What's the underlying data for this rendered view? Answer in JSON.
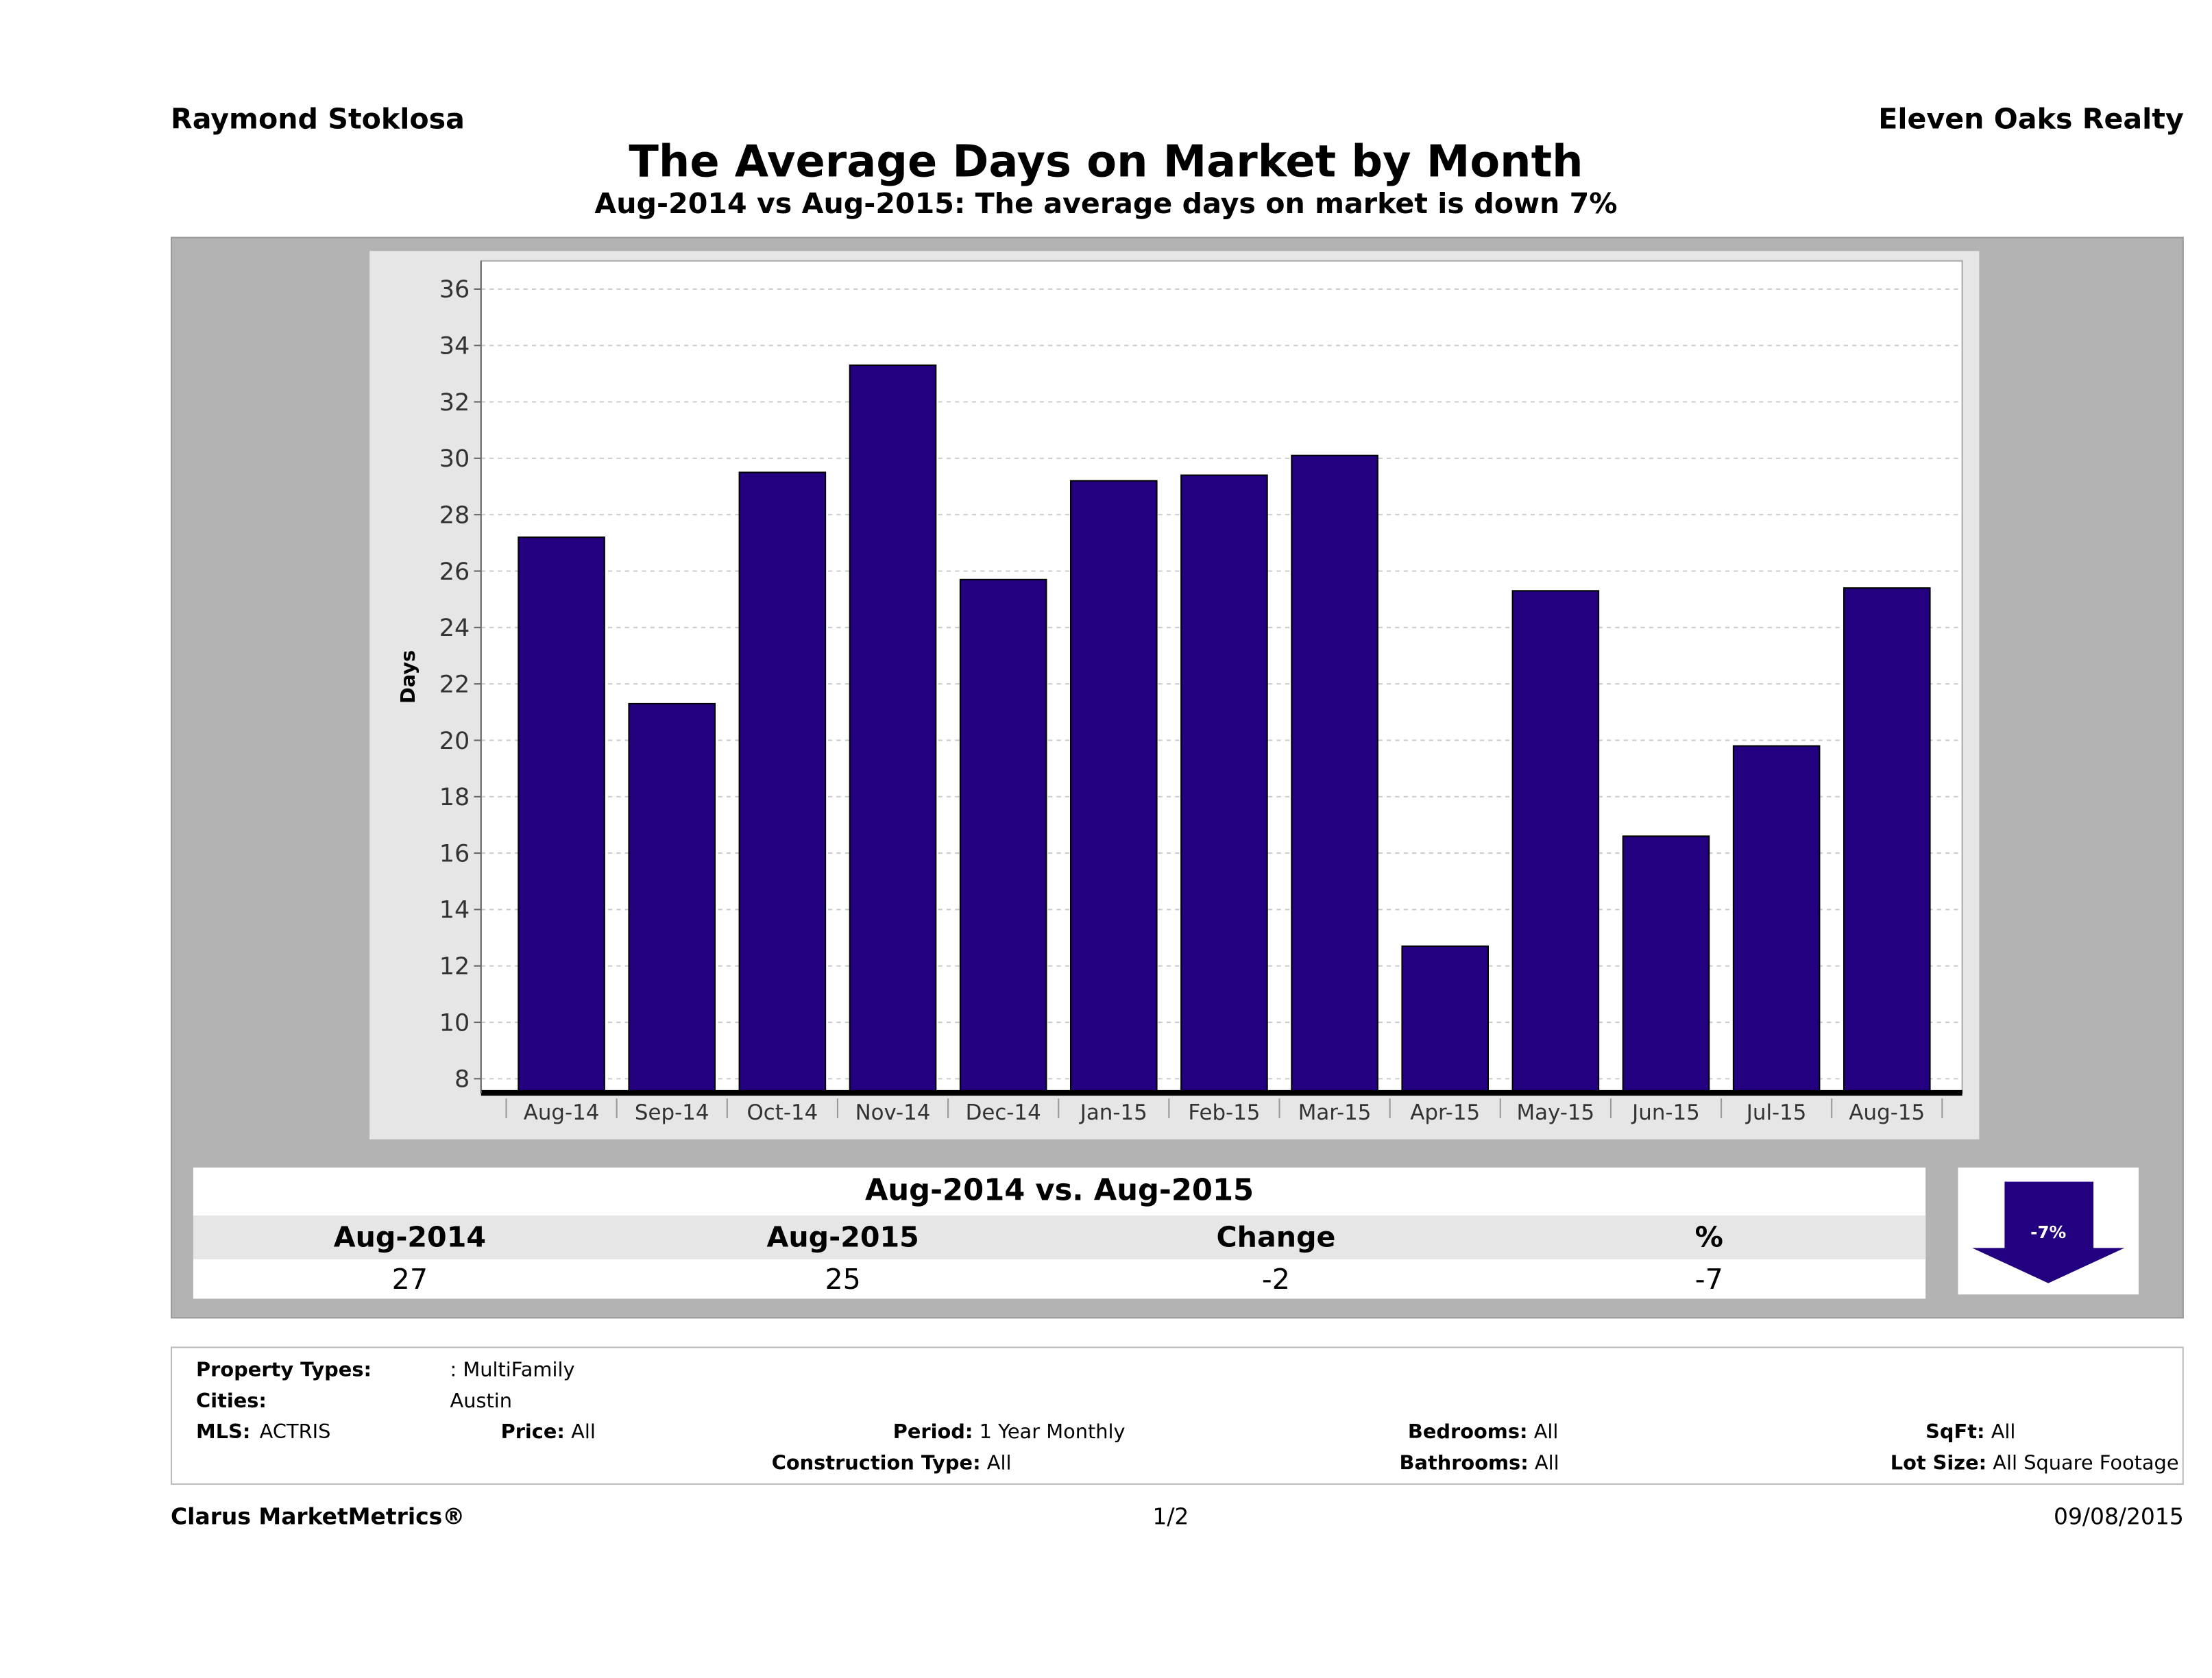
{
  "header": {
    "agent": "Raymond Stoklosa",
    "company": "Eleven Oaks Realty"
  },
  "title": "The Average Days on Market by Month",
  "subtitle": "Aug-2014 vs Aug-2015: The average days on market is down 7%",
  "chart_data": {
    "type": "bar",
    "title": "The Average Days on Market by Month",
    "xlabel": "",
    "ylabel": "Days",
    "categories": [
      "Aug-14",
      "Sep-14",
      "Oct-14",
      "Nov-14",
      "Dec-14",
      "Jan-15",
      "Feb-15",
      "Mar-15",
      "Apr-15",
      "May-15",
      "Jun-15",
      "Jul-15",
      "Aug-15"
    ],
    "values": [
      27.2,
      21.3,
      29.5,
      33.3,
      25.7,
      29.2,
      29.4,
      30.1,
      12.7,
      25.3,
      16.6,
      19.8,
      25.4
    ],
    "ylim": [
      7.5,
      37
    ],
    "yticks": [
      8,
      10,
      12,
      14,
      16,
      18,
      20,
      22,
      24,
      26,
      28,
      30,
      32,
      34,
      36
    ],
    "grid": true,
    "bar_color": "#220080"
  },
  "summary": {
    "title": "Aug-2014 vs. Aug-2015",
    "headers": [
      "Aug-2014",
      "Aug-2015",
      "Change",
      "%"
    ],
    "values": [
      "27",
      "25",
      "-2",
      "-7"
    ],
    "badge": "-7%"
  },
  "filters": {
    "property_types_label": "Property Types:",
    "property_types": ": MultiFamily",
    "cities_label": "Cities:",
    "cities": "Austin",
    "mls_label": "MLS:",
    "mls": "ACTRIS",
    "price_label": "Price:",
    "price": "All",
    "period_label": "Period:",
    "period": "1 Year Monthly",
    "bedrooms_label": "Bedrooms:",
    "bedrooms": "All",
    "sqft_label": "SqFt:",
    "sqft": "All",
    "construction_label": "Construction Type:",
    "construction": "All",
    "bathrooms_label": "Bathrooms:",
    "bathrooms": "All",
    "lot_label": "Lot Size:",
    "lot": "All Square Footage"
  },
  "footer": {
    "brand": "Clarus MarketMetrics®",
    "page": "1/2",
    "date": "09/08/2015"
  }
}
